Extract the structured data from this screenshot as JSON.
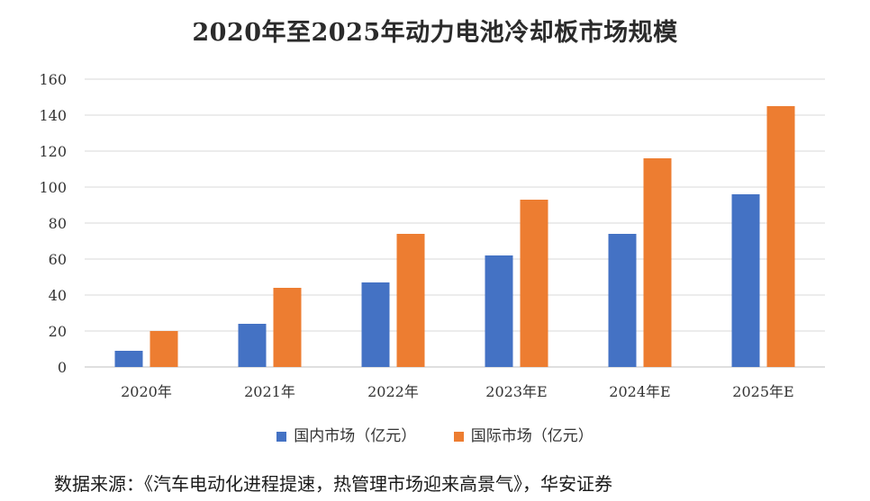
{
  "chart_data": {
    "type": "bar",
    "title": "2020年至2025年动力电池冷却板市场规模",
    "categories": [
      "2020年",
      "2021年",
      "2022年",
      "2023年E",
      "2024年E",
      "2025年E"
    ],
    "series": [
      {
        "name": "国内市场（亿元）",
        "color": "#4472C4",
        "values": [
          9,
          24,
          47,
          62,
          74,
          96
        ]
      },
      {
        "name": "国际市场（亿元）",
        "color": "#ED7D31",
        "values": [
          20,
          44,
          74,
          93,
          116,
          145
        ]
      }
    ],
    "ylim": [
      0,
      160
    ],
    "yticks": [
      0,
      20,
      40,
      60,
      80,
      100,
      120,
      140,
      160
    ],
    "grid": true,
    "legend_position": "bottom"
  },
  "source": "数据来源：《汽车电动化进程提速，热管理市场迎来高景气》，华安证券"
}
